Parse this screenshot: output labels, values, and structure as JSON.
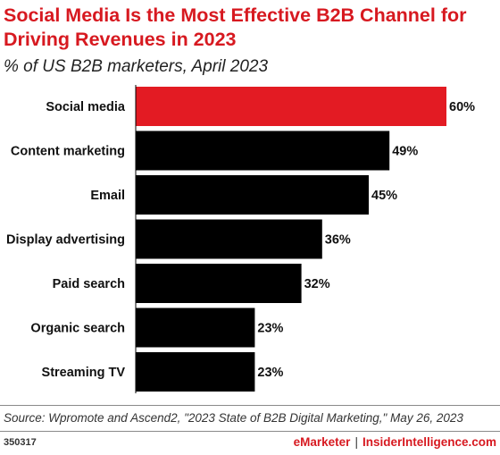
{
  "header": {
    "title": "Social Media Is the Most Effective B2B Channel for Driving Revenues in 2023",
    "subtitle": "% of US B2B marketers, April 2023"
  },
  "chart_data": {
    "type": "bar",
    "orientation": "horizontal",
    "categories": [
      "Social media",
      "Content marketing",
      "Email",
      "Display advertising",
      "Paid search",
      "Organic search",
      "Streaming TV"
    ],
    "values": [
      60,
      49,
      45,
      36,
      32,
      23,
      23
    ],
    "value_labels": [
      "60%",
      "49%",
      "45%",
      "36%",
      "32%",
      "23%",
      "23%"
    ],
    "xlim": [
      0,
      60
    ],
    "grid": false,
    "colors": {
      "highlight": "#e31b23",
      "bar": "#000000"
    },
    "highlight_index": 0
  },
  "footer": {
    "source": "Source: Wpromote and Ascend2, \"2023 State of B2B Digital Marketing,\" May 26, 2023",
    "chart_id": "350317",
    "brand_emarketer": "eMarketer",
    "separator": "|",
    "brand_insider": "InsiderIntelligence.com"
  }
}
